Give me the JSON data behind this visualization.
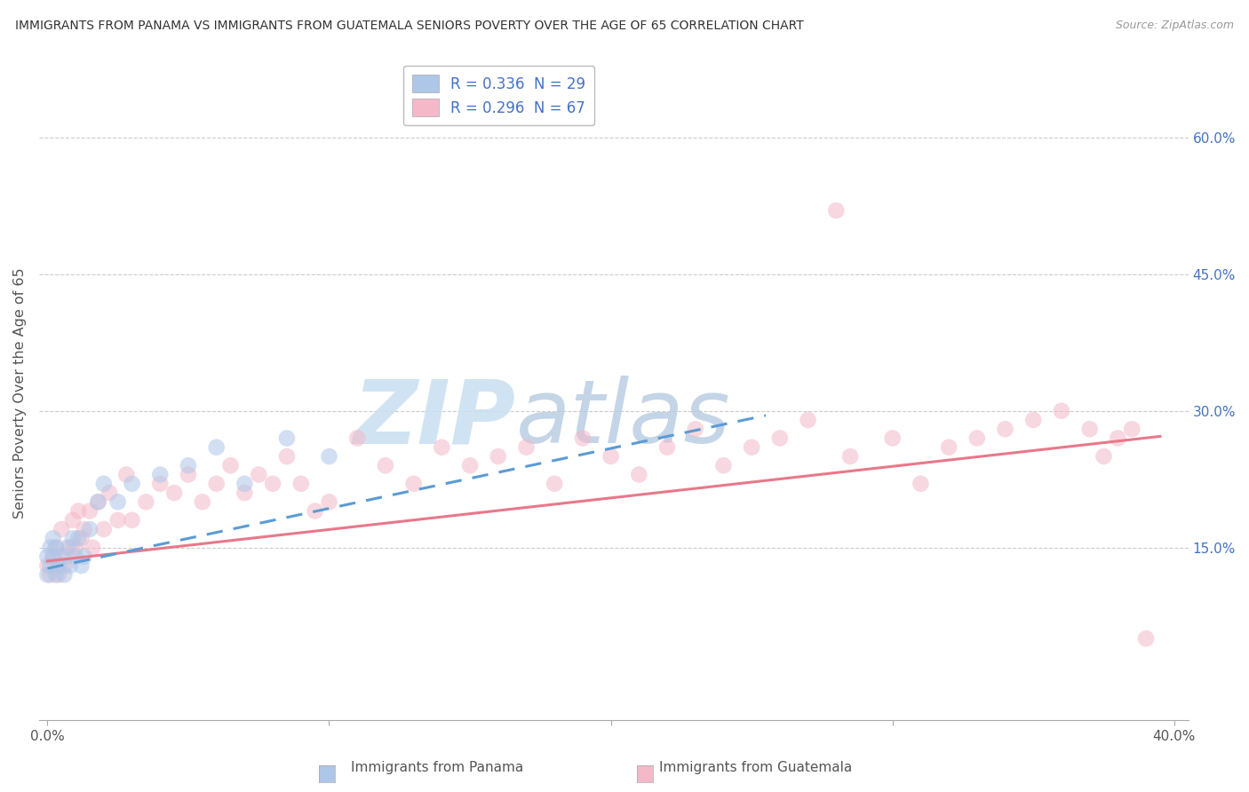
{
  "title": "IMMIGRANTS FROM PANAMA VS IMMIGRANTS FROM GUATEMALA SENIORS POVERTY OVER THE AGE OF 65 CORRELATION CHART",
  "source": "Source: ZipAtlas.com",
  "ylabel": "Seniors Poverty Over the Age of 65",
  "xlim": [
    -0.003,
    0.405
  ],
  "ylim": [
    -0.04,
    0.68
  ],
  "xticks": [
    0.0,
    0.1,
    0.2,
    0.3,
    0.4
  ],
  "xticklabels": [
    "0.0%",
    "",
    "",
    "",
    "40.0%"
  ],
  "ytick_positions": [
    0.15,
    0.3,
    0.45,
    0.6
  ],
  "ytick_labels": [
    "15.0%",
    "30.0%",
    "45.0%",
    "60.0%"
  ],
  "legend_entries": [
    {
      "label": "R = 0.336  N = 29",
      "color": "#aec6e8"
    },
    {
      "label": "R = 0.296  N = 67",
      "color": "#f4b8c8"
    }
  ],
  "legend_label_color": "#4472c4",
  "series_panama": {
    "color": "#aec6e8",
    "edge_color": "#7baad4",
    "trend_color": "#5b9bd5",
    "trend_style": "--",
    "trend_x_start": 0.0,
    "trend_x_end": 0.255,
    "trend_y_start": 0.127,
    "trend_y_end": 0.295,
    "x": [
      0.0,
      0.0,
      0.001,
      0.001,
      0.002,
      0.002,
      0.003,
      0.003,
      0.004,
      0.005,
      0.006,
      0.007,
      0.008,
      0.009,
      0.01,
      0.011,
      0.012,
      0.013,
      0.015,
      0.018,
      0.02,
      0.025,
      0.03,
      0.04,
      0.05,
      0.06,
      0.07,
      0.085,
      0.1
    ],
    "y": [
      0.12,
      0.14,
      0.13,
      0.15,
      0.14,
      0.16,
      0.12,
      0.15,
      0.13,
      0.14,
      0.12,
      0.15,
      0.13,
      0.16,
      0.14,
      0.16,
      0.13,
      0.14,
      0.17,
      0.2,
      0.22,
      0.2,
      0.22,
      0.23,
      0.24,
      0.26,
      0.22,
      0.27,
      0.25
    ]
  },
  "series_guatemala": {
    "color": "#f4b8c8",
    "edge_color": "#e8788a",
    "trend_color": "#e8788a",
    "trend_style": "-",
    "trend_x_start": 0.0,
    "trend_x_end": 0.395,
    "trend_y_start": 0.135,
    "trend_y_end": 0.272,
    "x": [
      0.0,
      0.001,
      0.002,
      0.003,
      0.004,
      0.005,
      0.006,
      0.007,
      0.008,
      0.009,
      0.01,
      0.011,
      0.012,
      0.013,
      0.015,
      0.016,
      0.018,
      0.02,
      0.022,
      0.025,
      0.028,
      0.03,
      0.035,
      0.04,
      0.045,
      0.05,
      0.055,
      0.06,
      0.065,
      0.07,
      0.075,
      0.08,
      0.085,
      0.09,
      0.095,
      0.1,
      0.11,
      0.12,
      0.13,
      0.14,
      0.15,
      0.16,
      0.17,
      0.18,
      0.19,
      0.2,
      0.21,
      0.22,
      0.23,
      0.24,
      0.25,
      0.26,
      0.27,
      0.28,
      0.285,
      0.3,
      0.31,
      0.32,
      0.33,
      0.34,
      0.35,
      0.36,
      0.37,
      0.375,
      0.38,
      0.385,
      0.39
    ],
    "y": [
      0.13,
      0.12,
      0.14,
      0.15,
      0.12,
      0.17,
      0.13,
      0.14,
      0.15,
      0.18,
      0.15,
      0.19,
      0.16,
      0.17,
      0.19,
      0.15,
      0.2,
      0.17,
      0.21,
      0.18,
      0.23,
      0.18,
      0.2,
      0.22,
      0.21,
      0.23,
      0.2,
      0.22,
      0.24,
      0.21,
      0.23,
      0.22,
      0.25,
      0.22,
      0.19,
      0.2,
      0.27,
      0.24,
      0.22,
      0.26,
      0.24,
      0.25,
      0.26,
      0.22,
      0.27,
      0.25,
      0.23,
      0.26,
      0.28,
      0.24,
      0.26,
      0.27,
      0.29,
      0.52,
      0.25,
      0.27,
      0.22,
      0.26,
      0.27,
      0.28,
      0.29,
      0.3,
      0.28,
      0.25,
      0.27,
      0.28,
      0.05
    ]
  },
  "watermark_text": "ZIP",
  "watermark_text2": "atlas",
  "background_color": "#ffffff",
  "grid_color": "#cccccc",
  "marker_size": 180,
  "marker_alpha": 0.55
}
